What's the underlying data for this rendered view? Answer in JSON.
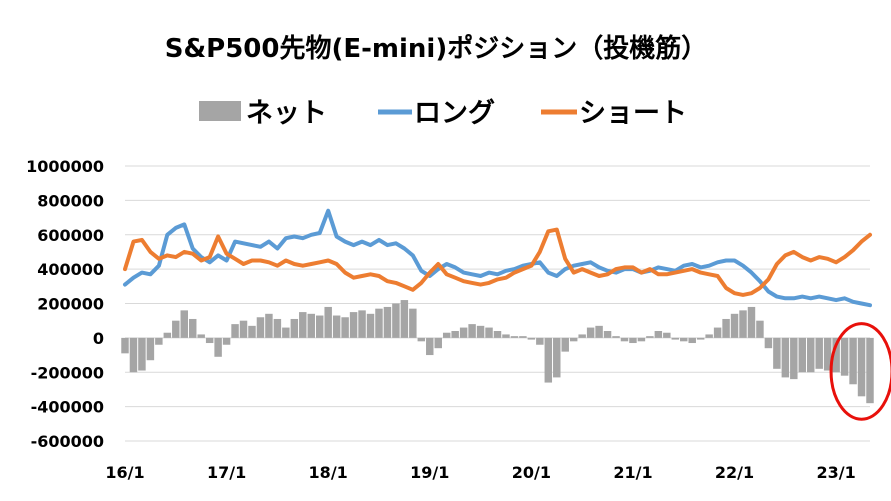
{
  "chart_data": {
    "type": "line",
    "title": "S&P500先物(E-mini)ポジション（投機筋）",
    "xlabel": "",
    "ylabel": "",
    "x_ticks": [
      "16/1",
      "17/1",
      "18/1",
      "19/1",
      "20/1",
      "21/1",
      "22/1",
      "23/1"
    ],
    "y_ticks": [
      1000000,
      800000,
      600000,
      400000,
      200000,
      0,
      -200000,
      -400000,
      -600000
    ],
    "ylim": [
      -600000,
      1000000
    ],
    "legend_position": "top",
    "grid": "horizontal",
    "highlight": {
      "shape": "ellipse",
      "color": "#e8100b",
      "x_range": [
        "23/3",
        "23/5"
      ],
      "y_range": [
        -450000,
        60000
      ]
    },
    "series": [
      {
        "name": "ネット",
        "type": "bar",
        "color": "#a5a5a5",
        "x": [
          "16/1",
          "16/2",
          "16/3",
          "16/4",
          "16/5",
          "16/6",
          "16/7",
          "16/8",
          "16/9",
          "16/10",
          "16/11",
          "16/12",
          "17/1",
          "17/2",
          "17/3",
          "17/4",
          "17/5",
          "17/6",
          "17/7",
          "17/8",
          "17/9",
          "17/10",
          "17/11",
          "17/12",
          "18/1",
          "18/2",
          "18/3",
          "18/4",
          "18/5",
          "18/6",
          "18/7",
          "18/8",
          "18/9",
          "18/10",
          "18/11",
          "18/12",
          "19/1",
          "19/2",
          "19/3",
          "19/4",
          "19/5",
          "19/6",
          "19/7",
          "19/8",
          "19/9",
          "19/10",
          "19/11",
          "19/12",
          "20/1",
          "20/2",
          "20/3",
          "20/4",
          "20/5",
          "20/6",
          "20/7",
          "20/8",
          "20/9",
          "20/10",
          "20/11",
          "20/12",
          "21/1",
          "21/2",
          "21/3",
          "21/4",
          "21/5",
          "21/6",
          "21/7",
          "21/8",
          "21/9",
          "21/10",
          "21/11",
          "21/12",
          "22/1",
          "22/2",
          "22/3",
          "22/4",
          "22/5",
          "22/6",
          "22/7",
          "22/8",
          "22/9",
          "22/10",
          "22/11",
          "22/12",
          "23/1",
          "23/2",
          "23/3",
          "23/4",
          "23/5"
        ],
        "values": [
          -90000,
          -200000,
          -190000,
          -130000,
          -40000,
          30000,
          100000,
          160000,
          110000,
          20000,
          -30000,
          -110000,
          -40000,
          80000,
          100000,
          70000,
          120000,
          140000,
          110000,
          60000,
          110000,
          150000,
          140000,
          130000,
          180000,
          130000,
          120000,
          150000,
          160000,
          140000,
          170000,
          180000,
          200000,
          220000,
          170000,
          -20000,
          -100000,
          -60000,
          30000,
          40000,
          60000,
          80000,
          70000,
          60000,
          40000,
          20000,
          10000,
          10000,
          -10000,
          -40000,
          -260000,
          -230000,
          -80000,
          -20000,
          20000,
          60000,
          70000,
          40000,
          10000,
          -20000,
          -30000,
          -20000,
          10000,
          40000,
          30000,
          -10000,
          -20000,
          -30000,
          -10000,
          20000,
          60000,
          110000,
          140000,
          160000,
          180000,
          100000,
          -60000,
          -180000,
          -230000,
          -240000,
          -200000,
          -200000,
          -180000,
          -190000,
          -200000,
          -220000,
          -270000,
          -340000,
          -380000
        ]
      },
      {
        "name": "ロング",
        "type": "line",
        "color": "#5b9bd5",
        "x": [
          "16/1",
          "16/2",
          "16/3",
          "16/4",
          "16/5",
          "16/6",
          "16/7",
          "16/8",
          "16/9",
          "16/10",
          "16/11",
          "16/12",
          "17/1",
          "17/2",
          "17/3",
          "17/4",
          "17/5",
          "17/6",
          "17/7",
          "17/8",
          "17/9",
          "17/10",
          "17/11",
          "17/12",
          "18/1",
          "18/2",
          "18/3",
          "18/4",
          "18/5",
          "18/6",
          "18/7",
          "18/8",
          "18/9",
          "18/10",
          "18/11",
          "18/12",
          "19/1",
          "19/2",
          "19/3",
          "19/4",
          "19/5",
          "19/6",
          "19/7",
          "19/8",
          "19/9",
          "19/10",
          "19/11",
          "19/12",
          "20/1",
          "20/2",
          "20/3",
          "20/4",
          "20/5",
          "20/6",
          "20/7",
          "20/8",
          "20/9",
          "20/10",
          "20/11",
          "20/12",
          "21/1",
          "21/2",
          "21/3",
          "21/4",
          "21/5",
          "21/6",
          "21/7",
          "21/8",
          "21/9",
          "21/10",
          "21/11",
          "21/12",
          "22/1",
          "22/2",
          "22/3",
          "22/4",
          "22/5",
          "22/6",
          "22/7",
          "22/8",
          "22/9",
          "22/10",
          "22/11",
          "22/12",
          "23/1",
          "23/2",
          "23/3",
          "23/4",
          "23/5"
        ],
        "values": [
          310000,
          350000,
          380000,
          370000,
          420000,
          600000,
          640000,
          660000,
          520000,
          470000,
          440000,
          480000,
          450000,
          560000,
          550000,
          540000,
          530000,
          560000,
          520000,
          580000,
          590000,
          580000,
          600000,
          610000,
          740000,
          590000,
          560000,
          540000,
          560000,
          540000,
          570000,
          540000,
          550000,
          520000,
          480000,
          390000,
          360000,
          400000,
          430000,
          410000,
          380000,
          370000,
          360000,
          380000,
          370000,
          390000,
          400000,
          420000,
          430000,
          440000,
          380000,
          360000,
          400000,
          420000,
          430000,
          440000,
          410000,
          390000,
          380000,
          400000,
          400000,
          380000,
          390000,
          410000,
          400000,
          390000,
          420000,
          430000,
          410000,
          420000,
          440000,
          450000,
          450000,
          420000,
          380000,
          330000,
          270000,
          240000,
          230000,
          230000,
          240000,
          230000,
          240000,
          230000,
          220000,
          230000,
          210000,
          200000,
          190000
        ]
      },
      {
        "name": "ショート",
        "type": "line",
        "color": "#ed7d31",
        "x": [
          "16/1",
          "16/2",
          "16/3",
          "16/4",
          "16/5",
          "16/6",
          "16/7",
          "16/8",
          "16/9",
          "16/10",
          "16/11",
          "16/12",
          "17/1",
          "17/2",
          "17/3",
          "17/4",
          "17/5",
          "17/6",
          "17/7",
          "17/8",
          "17/9",
          "17/10",
          "17/11",
          "17/12",
          "18/1",
          "18/2",
          "18/3",
          "18/4",
          "18/5",
          "18/6",
          "18/7",
          "18/8",
          "18/9",
          "18/10",
          "18/11",
          "18/12",
          "19/1",
          "19/2",
          "19/3",
          "19/4",
          "19/5",
          "19/6",
          "19/7",
          "19/8",
          "19/9",
          "19/10",
          "19/11",
          "19/12",
          "20/1",
          "20/2",
          "20/3",
          "20/4",
          "20/5",
          "20/6",
          "20/7",
          "20/8",
          "20/9",
          "20/10",
          "20/11",
          "20/12",
          "21/1",
          "21/2",
          "21/3",
          "21/4",
          "21/5",
          "21/6",
          "21/7",
          "21/8",
          "21/9",
          "21/10",
          "21/11",
          "21/12",
          "22/1",
          "22/2",
          "22/3",
          "22/4",
          "22/5",
          "22/6",
          "22/7",
          "22/8",
          "22/9",
          "22/10",
          "22/11",
          "22/12",
          "23/1",
          "23/2",
          "23/3",
          "23/4",
          "23/5"
        ],
        "values": [
          400000,
          560000,
          570000,
          500000,
          460000,
          480000,
          470000,
          500000,
          490000,
          450000,
          470000,
          590000,
          490000,
          460000,
          430000,
          450000,
          450000,
          440000,
          420000,
          450000,
          430000,
          420000,
          430000,
          440000,
          450000,
          430000,
          380000,
          350000,
          360000,
          370000,
          360000,
          330000,
          320000,
          300000,
          280000,
          320000,
          380000,
          430000,
          370000,
          350000,
          330000,
          320000,
          310000,
          320000,
          340000,
          350000,
          380000,
          400000,
          420000,
          500000,
          620000,
          630000,
          460000,
          380000,
          400000,
          380000,
          360000,
          370000,
          400000,
          410000,
          410000,
          380000,
          400000,
          370000,
          370000,
          380000,
          390000,
          400000,
          380000,
          370000,
          360000,
          290000,
          260000,
          250000,
          260000,
          290000,
          340000,
          430000,
          480000,
          500000,
          470000,
          450000,
          470000,
          460000,
          440000,
          470000,
          510000,
          560000,
          600000
        ]
      }
    ]
  }
}
